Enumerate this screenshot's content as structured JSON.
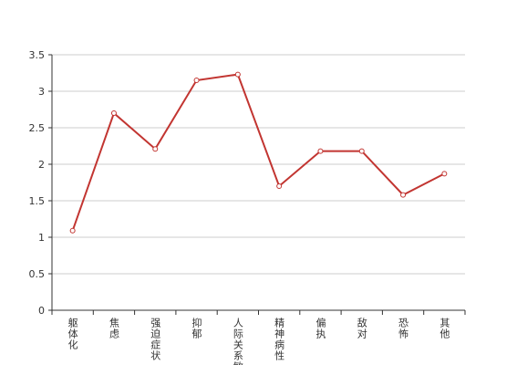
{
  "chart_data": {
    "type": "line",
    "categories": [
      "躯体化",
      "焦虑",
      "强迫症状",
      "抑郁",
      "人际关系敏感",
      "精神病性",
      "偏执",
      "敌对",
      "恐怖",
      "其他"
    ],
    "values": [
      1.09,
      2.7,
      2.21,
      3.15,
      3.23,
      1.7,
      2.18,
      2.18,
      1.58,
      1.87
    ],
    "color": "#c23531",
    "ylim": [
      0,
      3.5
    ],
    "yticks": [
      0,
      0.5,
      1,
      1.5,
      2,
      2.5,
      3,
      3.5
    ],
    "grid": true
  }
}
